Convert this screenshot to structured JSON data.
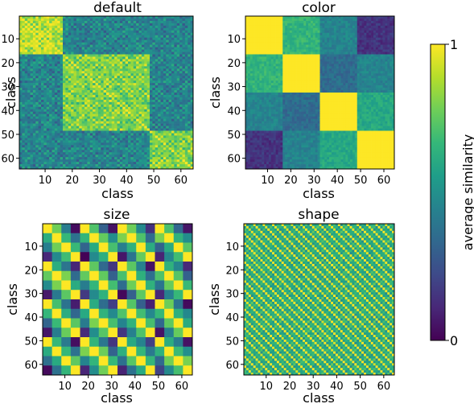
{
  "chart_data": [
    {
      "type": "heatmap",
      "title": "default",
      "xlabel": "class",
      "ylabel": "class",
      "size": 64,
      "xlim": [
        1,
        64
      ],
      "ylim": [
        64,
        1
      ],
      "xticks": [
        10,
        20,
        30,
        40,
        50,
        60
      ],
      "yticks": [
        10,
        20,
        30,
        40,
        50,
        60
      ],
      "show_xticklabels": true,
      "pattern": "block_structure",
      "blocks": [
        [
          1,
          16,
          0.9
        ],
        [
          17,
          48,
          0.8
        ],
        [
          49,
          64,
          0.8
        ]
      ],
      "off_block_value": 0.45,
      "value_range": [
        0,
        1
      ]
    },
    {
      "type": "heatmap",
      "title": "color",
      "xlabel": "class",
      "ylabel": "class",
      "size": 64,
      "xlim": [
        1,
        64
      ],
      "ylim": [
        64,
        1
      ],
      "xticks": [
        10,
        20,
        30,
        40,
        50,
        60
      ],
      "yticks": [
        10,
        20,
        30,
        40,
        50,
        60
      ],
      "show_xticklabels": true,
      "pattern": "four_block",
      "block_matrix": [
        [
          1.0,
          0.65,
          0.45,
          0.15
        ],
        [
          0.65,
          1.0,
          0.35,
          0.45
        ],
        [
          0.45,
          0.35,
          1.0,
          0.6
        ],
        [
          0.15,
          0.45,
          0.6,
          1.0
        ]
      ],
      "value_range": [
        0,
        1
      ]
    },
    {
      "type": "heatmap",
      "title": "size",
      "xlabel": "class",
      "ylabel": "class",
      "size": 64,
      "xlim": [
        1,
        64
      ],
      "ylim": [
        64,
        1
      ],
      "xticks": [
        10,
        20,
        30,
        40,
        50,
        60
      ],
      "yticks": [
        10,
        20,
        30,
        40,
        50,
        60
      ],
      "show_xticklabels": true,
      "pattern": "period_4_groups",
      "group_matrix": [
        [
          1.0,
          0.7,
          0.4,
          0.1
        ],
        [
          0.7,
          1.0,
          0.7,
          0.4
        ],
        [
          0.4,
          0.7,
          1.0,
          0.7
        ],
        [
          0.1,
          0.4,
          0.7,
          1.0
        ]
      ],
      "value_range": [
        0,
        1
      ]
    },
    {
      "type": "heatmap",
      "title": "shape",
      "xlabel": "class",
      "ylabel": "class",
      "size": 64,
      "xlim": [
        1,
        64
      ],
      "ylim": [
        64,
        1
      ],
      "xticks": [
        10,
        20,
        30,
        40,
        50,
        60
      ],
      "yticks": [
        10,
        20,
        30,
        40,
        50,
        60
      ],
      "show_xticklabels": true,
      "pattern": "period_4_single",
      "group_matrix": [
        [
          1.0,
          0.55,
          0.65,
          0.6
        ],
        [
          0.55,
          1.0,
          0.6,
          0.7
        ],
        [
          0.65,
          0.6,
          1.0,
          0.55
        ],
        [
          0.6,
          0.7,
          0.55,
          1.0
        ]
      ],
      "value_range": [
        0,
        1
      ]
    }
  ],
  "colorbar": {
    "label": "average similarity",
    "min": 0,
    "max": 1,
    "tick_labels": [
      "0",
      "1"
    ],
    "colormap": "viridis",
    "colormap_stops": [
      "#440154",
      "#482878",
      "#3e4a89",
      "#31688e",
      "#26828e",
      "#1f9e89",
      "#35b779",
      "#6ece58",
      "#b5de2b",
      "#fde725"
    ]
  }
}
